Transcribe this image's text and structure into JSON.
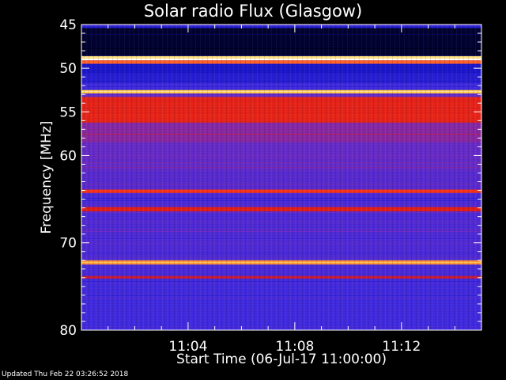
{
  "chart_data": {
    "type": "heatmap",
    "title": "Solar radio Flux (Glasgow)",
    "ylabel": "Frequency [MHz]",
    "xlabel": "Start Time (06-Jul-17 11:00:00)",
    "ylim": [
      45,
      80
    ],
    "xlim_minutes": [
      0,
      15
    ],
    "y_ticks": [
      45,
      50,
      55,
      60,
      70,
      80
    ],
    "x_ticks": [
      {
        "minute": 4,
        "label": "11:04"
      },
      {
        "minute": 8,
        "label": "11:08"
      },
      {
        "minute": 12,
        "label": "11:12"
      }
    ],
    "colormap": [
      "#00001a",
      "#1010c0",
      "#3a2ae0",
      "#7a2bb8",
      "#d81818",
      "#ff3a1a",
      "#ffd24a",
      "#ffffff"
    ],
    "frequency_bands": [
      {
        "from": 45.0,
        "to": 45.4,
        "intensity": 0.25
      },
      {
        "from": 45.4,
        "to": 48.6,
        "intensity": 0.02
      },
      {
        "from": 48.6,
        "to": 48.9,
        "intensity": 0.9
      },
      {
        "from": 48.9,
        "to": 49.1,
        "intensity": 1.0
      },
      {
        "from": 49.1,
        "to": 49.5,
        "intensity": 0.75
      },
      {
        "from": 49.5,
        "to": 50.6,
        "intensity": 0.18
      },
      {
        "from": 50.6,
        "to": 51.7,
        "intensity": 0.22
      },
      {
        "from": 51.7,
        "to": 52.5,
        "intensity": 0.3
      },
      {
        "from": 52.5,
        "to": 52.9,
        "intensity": 0.85
      },
      {
        "from": 52.9,
        "to": 53.3,
        "intensity": 0.38
      },
      {
        "from": 53.3,
        "to": 56.2,
        "intensity": 0.62
      },
      {
        "from": 56.2,
        "to": 58.5,
        "intensity": 0.45
      },
      {
        "from": 58.5,
        "to": 62.0,
        "intensity": 0.38
      },
      {
        "from": 62.0,
        "to": 63.9,
        "intensity": 0.35
      },
      {
        "from": 63.9,
        "to": 64.3,
        "intensity": 0.68
      },
      {
        "from": 64.3,
        "to": 65.9,
        "intensity": 0.32
      },
      {
        "from": 65.9,
        "to": 66.4,
        "intensity": 0.6
      },
      {
        "from": 66.4,
        "to": 72.0,
        "intensity": 0.33
      },
      {
        "from": 72.0,
        "to": 72.5,
        "intensity": 0.8
      },
      {
        "from": 72.5,
        "to": 73.8,
        "intensity": 0.32
      },
      {
        "from": 73.8,
        "to": 74.1,
        "intensity": 0.55
      },
      {
        "from": 74.1,
        "to": 80.0,
        "intensity": 0.3
      }
    ],
    "grid": false
  },
  "footer": "Updated Thu Feb 22 03:26:52 2018"
}
